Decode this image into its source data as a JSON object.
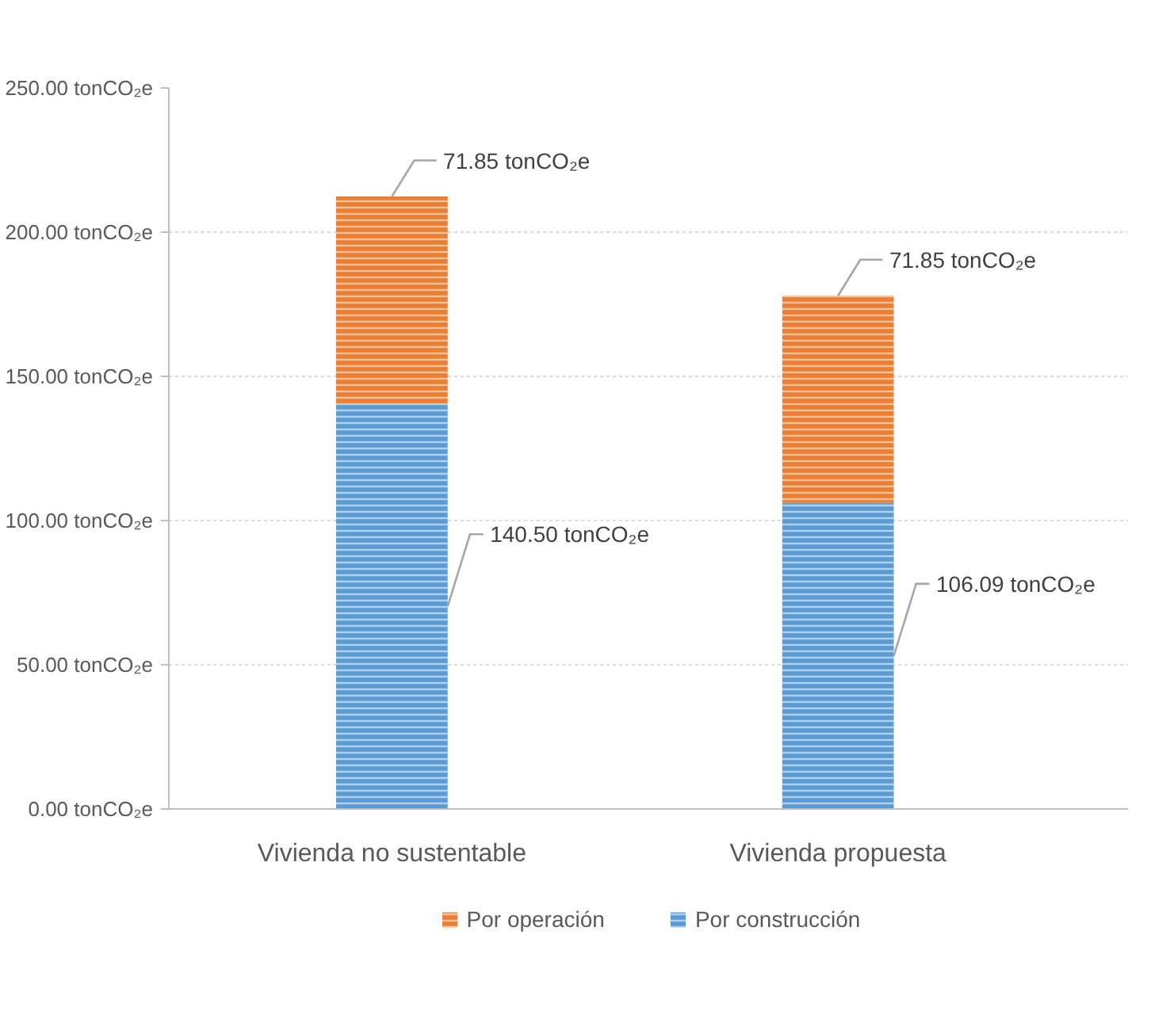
{
  "chart_data": {
    "type": "bar",
    "stacked": true,
    "categories": [
      "Vivienda no sustentable",
      "Vivienda propuesta"
    ],
    "series": [
      {
        "name": "Por construcción",
        "color": "#5b9bd5",
        "values": [
          140.5,
          106.09
        ],
        "value_labels": [
          "140.50 tonCO₂e",
          "106.09 tonCO₂e"
        ]
      },
      {
        "name": "Por operación",
        "color": "#ed7d31",
        "values": [
          71.85,
          71.85
        ],
        "value_labels": [
          "71.85 tonCO₂e",
          "71.85 tonCO₂e"
        ]
      }
    ],
    "ylim": [
      0,
      250
    ],
    "yticks": [
      {
        "value": 0,
        "label": "0.00 tonCO₂e"
      },
      {
        "value": 50,
        "label": "50.00 tonCO₂e"
      },
      {
        "value": 100,
        "label": "100.00 tonCO₂e"
      },
      {
        "value": 150,
        "label": "150.00 tonCO₂e"
      },
      {
        "value": 200,
        "label": "200.00 tonCO₂e"
      },
      {
        "value": 250,
        "label": "250.00 tonCO₂e"
      }
    ],
    "grid": "y",
    "legend": "bottom"
  }
}
